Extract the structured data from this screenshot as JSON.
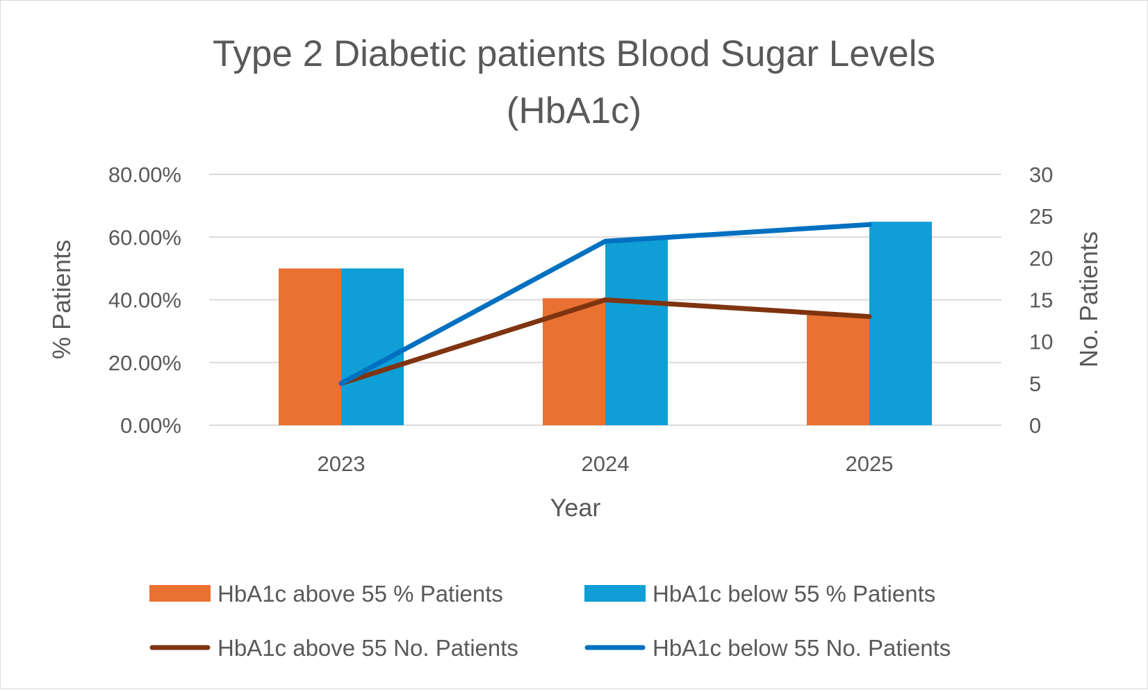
{
  "chart_data": {
    "type": "bar+line",
    "title": [
      "Type 2 Diabetic patients Blood Sugar Levels",
      "(HbA1c)"
    ],
    "xlabel": "Year",
    "ylabel": "% Patients",
    "y2label": "No. Patients",
    "categories": [
      "2023",
      "2024",
      "2025"
    ],
    "ylim": [
      0,
      0.8
    ],
    "yticks": [
      "0.00%",
      "20.00%",
      "40.00%",
      "60.00%",
      "80.00%"
    ],
    "y2lim": [
      0,
      30
    ],
    "y2ticks": [
      "0",
      "5",
      "10",
      "15",
      "20",
      "25",
      "30"
    ],
    "grid": true,
    "legend_position": "bottom",
    "bar_series": [
      {
        "name": "HbA1c above 55 % Patients",
        "values": [
          0.5,
          0.405,
          0.351
        ],
        "color": "#E97132"
      },
      {
        "name": "HbA1c below 55 % Patients",
        "values": [
          0.5,
          0.595,
          0.649
        ],
        "color": "#0F9ED5"
      }
    ],
    "line_series": [
      {
        "name": "HbA1c above 55 No. Patients",
        "values": [
          5,
          15,
          13
        ],
        "color": "#7F3410",
        "axis": "secondary"
      },
      {
        "name": "HbA1c below 55 No. Patients",
        "values": [
          5,
          22,
          24
        ],
        "color": "#0070C0",
        "axis": "secondary"
      }
    ]
  }
}
